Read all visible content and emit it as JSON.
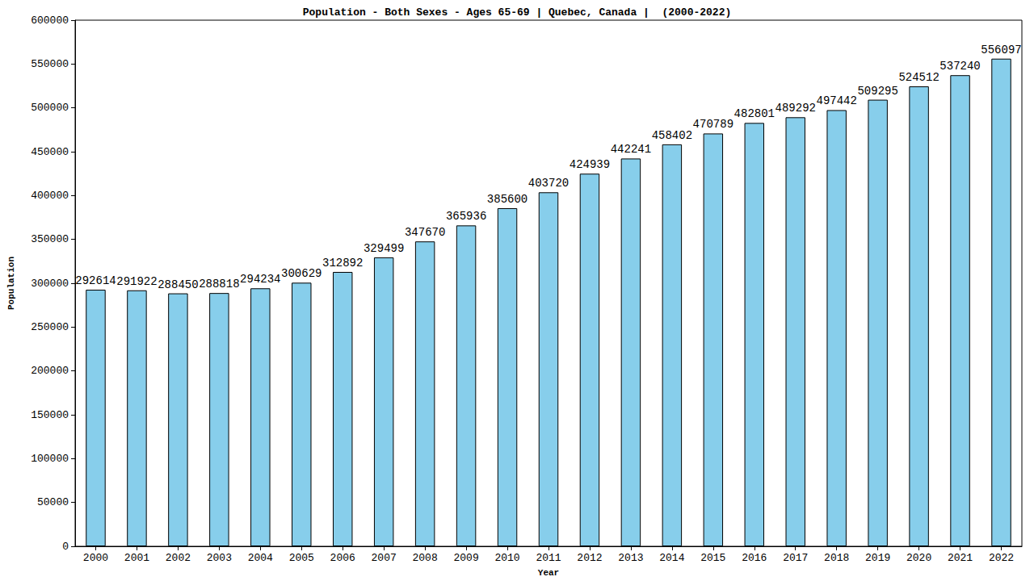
{
  "chart_data": {
    "type": "bar",
    "title": "Population - Both Sexes - Ages 65-69 | Quebec, Canada |  (2000-2022)",
    "x_label": "Year",
    "y_label": "Population",
    "categories": [
      "2000",
      "2001",
      "2002",
      "2003",
      "2004",
      "2005",
      "2006",
      "2007",
      "2008",
      "2009",
      "2010",
      "2011",
      "2012",
      "2013",
      "2014",
      "2015",
      "2016",
      "2017",
      "2018",
      "2019",
      "2020",
      "2021",
      "2022"
    ],
    "values": [
      292614,
      291922,
      288450,
      288818,
      294234,
      300629,
      312892,
      329499,
      347670,
      365936,
      385600,
      403720,
      424939,
      442241,
      458402,
      470789,
      482801,
      489292,
      497442,
      509295,
      524512,
      537240,
      556097
    ],
    "color": "#87ceeb",
    "ylim": [
      0,
      600000
    ],
    "yticks": [
      0,
      50000,
      100000,
      150000,
      200000,
      250000,
      300000,
      350000,
      400000,
      450000,
      500000,
      550000,
      600000
    ],
    "grid": false,
    "data_labels": true
  }
}
